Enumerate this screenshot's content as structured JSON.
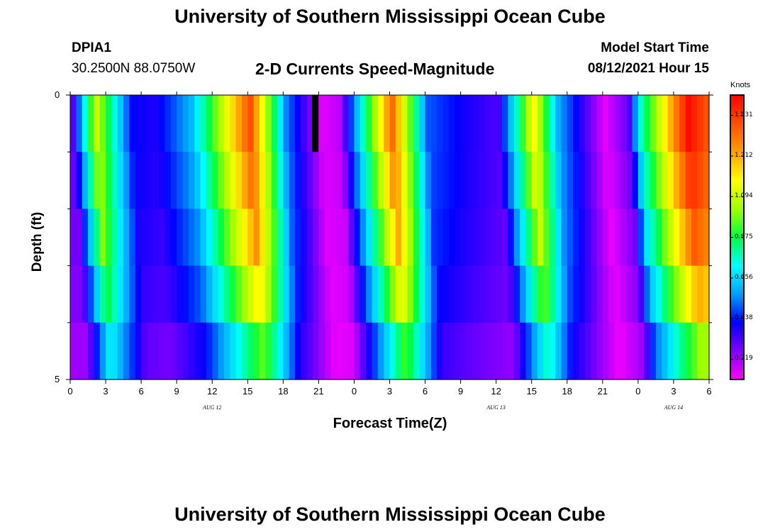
{
  "header": {
    "top_title": "University of Southern Mississippi Ocean Cube",
    "bottom_title": "University of Southern Mississippi Ocean Cube",
    "station": "DPIA1",
    "coords": "30.2500N  88.0750W",
    "subtitle": "2-D Currents Speed-Magnitude",
    "model_label": "Model Start Time",
    "model_time": "08/12/2021 Hour 15"
  },
  "chart_data": {
    "type": "heatmap",
    "title": "2-D Currents Speed-Magnitude",
    "xlabel": "Forecast Time(Z)",
    "ylabel": "Depth (ft)",
    "units_label": "Knots",
    "x_tick_labels": [
      "0",
      "3",
      "6",
      "9",
      "12",
      "15",
      "18",
      "21",
      "0",
      "3",
      "6",
      "9",
      "12",
      "15",
      "18",
      "21",
      "0",
      "3",
      "6"
    ],
    "x_tick_hours": [
      0,
      3,
      6,
      9,
      12,
      15,
      18,
      21,
      24,
      27,
      30,
      33,
      36,
      39,
      42,
      45,
      48,
      51,
      54
    ],
    "day_labels": [
      {
        "text": "AUG  12",
        "hour": 12
      },
      {
        "text": "AUG  13",
        "hour": 36
      },
      {
        "text": "AUG  14",
        "hour": 51
      }
    ],
    "y_tick_labels": [
      "0",
      "5"
    ],
    "ylim": [
      0,
      5
    ],
    "xlim": [
      0,
      54
    ],
    "colorbar_ticks": [
      "1.531",
      "1.312",
      "1.094",
      "0.875",
      "0.656",
      "0.438",
      "0.219"
    ],
    "colorbar_values": [
      1.531,
      1.312,
      1.094,
      0.875,
      0.656,
      0.438,
      0.219
    ],
    "colorbar_range": [
      0.11,
      1.64
    ],
    "depth_rows": 5,
    "cell_hours": 0.5,
    "grid": false,
    "phases": [
      0.2,
      0.45,
      0.75,
      1.05,
      1.4
    ],
    "decay": [
      1.0,
      0.96,
      0.9,
      0.8,
      0.62
    ],
    "envelope": [
      [
        0,
        0.3
      ],
      [
        2,
        1.1
      ],
      [
        5,
        0.42
      ],
      [
        7,
        0.38
      ],
      [
        10,
        0.6
      ],
      [
        15,
        1.5
      ],
      [
        18,
        0.55
      ],
      [
        21,
        0.15
      ],
      [
        22.5,
        0.18
      ],
      [
        27,
        1.45
      ],
      [
        30,
        0.5
      ],
      [
        33,
        0.4
      ],
      [
        36,
        0.32
      ],
      [
        39,
        1.2
      ],
      [
        41,
        0.6
      ],
      [
        45,
        0.14
      ],
      [
        47,
        0.3
      ],
      [
        48,
        0.75
      ],
      [
        52,
        1.62
      ],
      [
        54,
        1.45
      ]
    ],
    "missing_cell": {
      "hour": 20.5,
      "row": 0
    },
    "palette": [
      "#ff00ff",
      "#8000ff",
      "#0000ff",
      "#00a0ff",
      "#00ffff",
      "#00ff40",
      "#a0ff00",
      "#ffff00",
      "#ffa000",
      "#ff5000",
      "#ff0000"
    ]
  }
}
